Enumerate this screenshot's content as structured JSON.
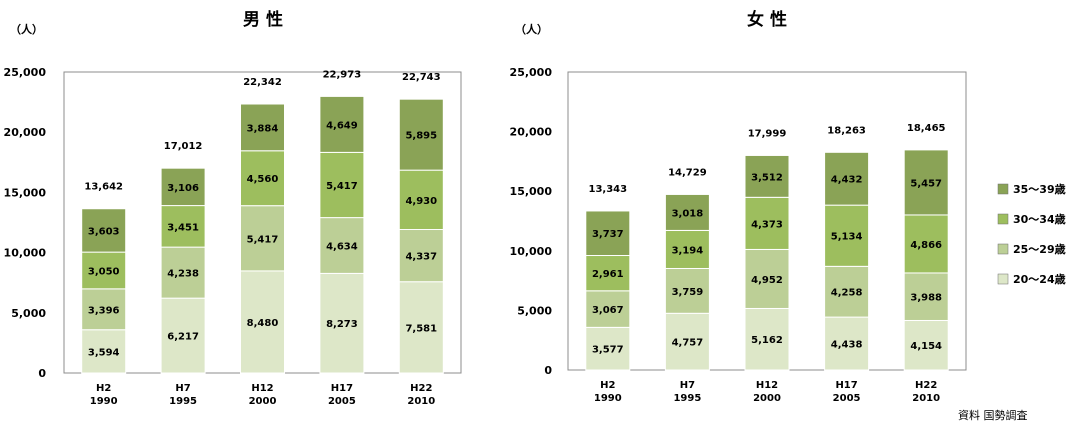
{
  "source_note": "資料 国勢調査",
  "legend": [
    {
      "label": "35～39歳",
      "color": "#8aa356"
    },
    {
      "label": "30～34歳",
      "color": "#9dbe5e"
    },
    {
      "label": "25～29歳",
      "color": "#bccf96"
    },
    {
      "label": "20～24歳",
      "color": "#dde7c8"
    }
  ],
  "chart_data": [
    {
      "type": "bar",
      "stacked": true,
      "title": "男 性",
      "ylabel": "（人）",
      "ylim": [
        0,
        25000
      ],
      "yticks": [
        "0",
        "5,000",
        "10,000",
        "15,000",
        "20,000",
        "25,000"
      ],
      "categories": [
        "H2\n1990",
        "H7\n1995",
        "H12\n2000",
        "H17\n2005",
        "H22\n2010"
      ],
      "totals": [
        "13,642",
        "17,012",
        "22,342",
        "22,973",
        "22,743"
      ],
      "series": [
        {
          "name": "20～24歳",
          "values": [
            3594,
            6217,
            8480,
            8273,
            7581
          ]
        },
        {
          "name": "25～29歳",
          "values": [
            3396,
            4238,
            5417,
            4634,
            4337
          ]
        },
        {
          "name": "30～34歳",
          "values": [
            3050,
            3451,
            4560,
            5417,
            4930
          ]
        },
        {
          "name": "35～39歳",
          "values": [
            3603,
            3106,
            3884,
            4649,
            5895
          ]
        }
      ],
      "grid": false,
      "legend": "none"
    },
    {
      "type": "bar",
      "stacked": true,
      "title": "女 性",
      "ylabel": "（人）",
      "ylim": [
        0,
        25000
      ],
      "yticks": [
        "0",
        "5,000",
        "10,000",
        "15,000",
        "20,000",
        "25,000"
      ],
      "categories": [
        "H2\n1990",
        "H7\n1995",
        "H12\n2000",
        "H17\n2005",
        "H22\n2010"
      ],
      "totals": [
        "13,343",
        "14,729",
        "17,999",
        "18,263",
        "18,465"
      ],
      "series": [
        {
          "name": "20～24歳",
          "values": [
            3577,
            4757,
            5162,
            4438,
            4154
          ]
        },
        {
          "name": "25～29歳",
          "values": [
            3067,
            3759,
            4952,
            4258,
            3988
          ]
        },
        {
          "name": "30～34歳",
          "values": [
            2961,
            3194,
            4373,
            5134,
            4866
          ]
        },
        {
          "name": "35～39歳",
          "values": [
            3737,
            3018,
            3512,
            4432,
            5457
          ]
        }
      ],
      "grid": false,
      "legend": "right"
    }
  ]
}
